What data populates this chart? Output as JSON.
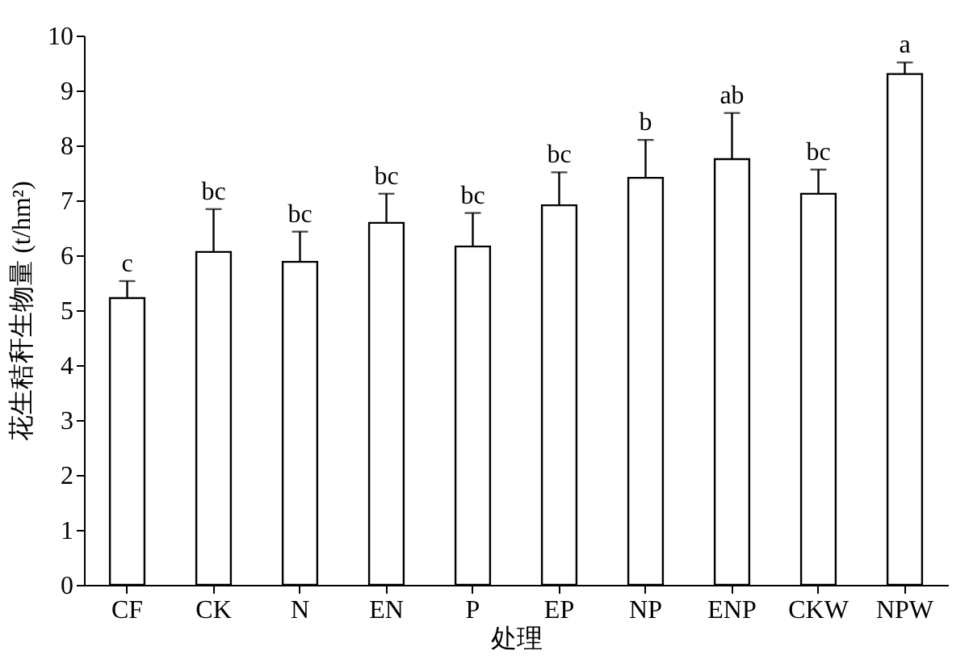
{
  "chart_data": {
    "type": "bar",
    "xlabel": "处理",
    "ylabel": "花生秸秆生物量 (t/hm²)",
    "categories": [
      "CF",
      "CK",
      "N",
      "EN",
      "P",
      "EP",
      "NP",
      "ENP",
      "CKW",
      "NPW"
    ],
    "values": [
      5.22,
      6.06,
      5.88,
      6.59,
      6.16,
      6.91,
      7.41,
      7.75,
      7.12,
      9.3
    ],
    "errors": [
      [
        5.22,
        5.53
      ],
      [
        6.06,
        6.84
      ],
      [
        5.88,
        6.43
      ],
      [
        6.59,
        7.12
      ],
      [
        6.16,
        6.77
      ],
      [
        6.91,
        7.51
      ],
      [
        7.41,
        8.1
      ],
      [
        7.75,
        8.59
      ],
      [
        7.12,
        7.56
      ],
      [
        9.3,
        9.51
      ]
    ],
    "color": "#ffffff",
    "ylim": [
      0,
      10
    ],
    "yticks": [
      0,
      1,
      2,
      3,
      4,
      5,
      6,
      7,
      8,
      9,
      10
    ],
    "grid": false,
    "annotations": [
      {
        "text": "c",
        "x": "CF",
        "y": 5.53
      },
      {
        "text": "bc",
        "x": "CK",
        "y": 6.84
      },
      {
        "text": "bc",
        "x": "N",
        "y": 6.43
      },
      {
        "text": "bc",
        "x": "EN",
        "y": 7.12
      },
      {
        "text": "bc",
        "x": "P",
        "y": 6.77
      },
      {
        "text": "bc",
        "x": "EP",
        "y": 7.51
      },
      {
        "text": "b",
        "x": "NP",
        "y": 8.1
      },
      {
        "text": "ab",
        "x": "ENP",
        "y": 8.59
      },
      {
        "text": "bc",
        "x": "CKW",
        "y": 7.56
      },
      {
        "text": "a",
        "x": "NPW",
        "y": 9.51
      }
    ]
  }
}
